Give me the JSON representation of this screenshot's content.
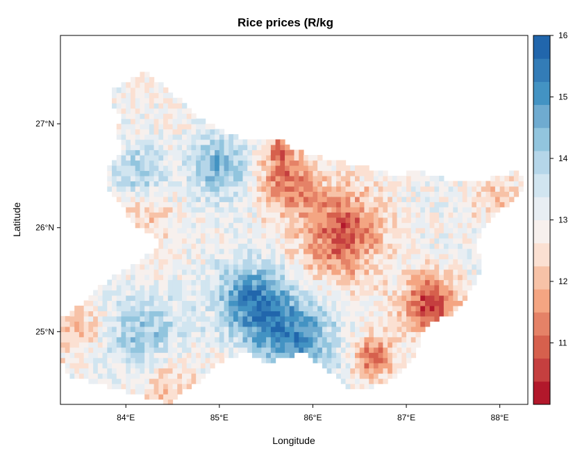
{
  "chart_data": {
    "type": "heatmap",
    "title": "Rice prices (R/kg",
    "xlabel": "Longitude",
    "ylabel": "Latitude",
    "xlim": [
      83.3,
      88.3
    ],
    "ylim": [
      24.3,
      27.85
    ],
    "x_ticks": [
      84,
      85,
      86,
      87,
      88
    ],
    "x_tick_labels": [
      "84°E",
      "85°E",
      "86°E",
      "87°E",
      "88°E"
    ],
    "y_ticks": [
      25,
      26,
      27
    ],
    "y_tick_labels": [
      "25°N",
      "26°N",
      "27°N"
    ],
    "colorbar": {
      "min": 10,
      "max": 16,
      "ticks": [
        11,
        12,
        13,
        14,
        15,
        16
      ],
      "tick_labels": [
        "11",
        "12",
        "13",
        "14",
        "15",
        "16"
      ],
      "colors": [
        "#b2182b",
        "#c53f3f",
        "#d6604d",
        "#e58267",
        "#f4a582",
        "#f7c2a7",
        "#fbe0d2",
        "#f7f0ed",
        "#e8eef3",
        "#d1e5f0",
        "#b5d6e9",
        "#92c5de",
        "#6fabd0",
        "#4393c3",
        "#337cb7",
        "#2166ac"
      ]
    },
    "region": {
      "boundary": [
        [
          83.32,
          25.13
        ],
        [
          83.45,
          25.22
        ],
        [
          83.6,
          25.32
        ],
        [
          83.75,
          25.45
        ],
        [
          83.9,
          25.55
        ],
        [
          84.05,
          25.62
        ],
        [
          84.2,
          25.72
        ],
        [
          84.35,
          25.82
        ],
        [
          84.3,
          25.95
        ],
        [
          84.15,
          26.0
        ],
        [
          84.0,
          26.1
        ],
        [
          83.95,
          26.25
        ],
        [
          83.8,
          26.35
        ],
        [
          83.8,
          26.55
        ],
        [
          83.95,
          26.75
        ],
        [
          83.9,
          26.95
        ],
        [
          83.95,
          27.1
        ],
        [
          83.85,
          27.2
        ],
        [
          83.85,
          27.35
        ],
        [
          84.0,
          27.4
        ],
        [
          84.2,
          27.5
        ],
        [
          84.35,
          27.4
        ],
        [
          84.55,
          27.25
        ],
        [
          84.7,
          27.1
        ],
        [
          84.9,
          27.0
        ],
        [
          85.1,
          26.9
        ],
        [
          85.3,
          26.85
        ],
        [
          85.5,
          26.85
        ],
        [
          85.65,
          26.85
        ],
        [
          85.8,
          26.75
        ],
        [
          86.0,
          26.7
        ],
        [
          86.2,
          26.65
        ],
        [
          86.45,
          26.6
        ],
        [
          86.7,
          26.55
        ],
        [
          86.9,
          26.5
        ],
        [
          87.1,
          26.55
        ],
        [
          87.25,
          26.5
        ],
        [
          87.5,
          26.45
        ],
        [
          87.8,
          26.45
        ],
        [
          88.0,
          26.5
        ],
        [
          88.15,
          26.55
        ],
        [
          88.28,
          26.45
        ],
        [
          88.2,
          26.3
        ],
        [
          88.05,
          26.2
        ],
        [
          87.85,
          26.05
        ],
        [
          87.75,
          25.85
        ],
        [
          87.8,
          25.65
        ],
        [
          87.75,
          25.5
        ],
        [
          87.65,
          25.35
        ],
        [
          87.55,
          25.25
        ],
        [
          87.45,
          25.15
        ],
        [
          87.25,
          25.1
        ],
        [
          87.15,
          24.95
        ],
        [
          87.1,
          24.8
        ],
        [
          87.0,
          24.65
        ],
        [
          86.85,
          24.55
        ],
        [
          86.7,
          24.5
        ],
        [
          86.55,
          24.45
        ],
        [
          86.35,
          24.45
        ],
        [
          86.2,
          24.6
        ],
        [
          86.05,
          24.7
        ],
        [
          85.9,
          24.8
        ],
        [
          85.7,
          24.75
        ],
        [
          85.5,
          24.7
        ],
        [
          85.3,
          24.8
        ],
        [
          85.1,
          24.75
        ],
        [
          84.9,
          24.65
        ],
        [
          84.75,
          24.5
        ],
        [
          84.55,
          24.4
        ],
        [
          84.45,
          24.3
        ],
        [
          84.3,
          24.35
        ],
        [
          84.1,
          24.4
        ],
        [
          83.9,
          24.45
        ],
        [
          83.7,
          24.5
        ],
        [
          83.5,
          24.55
        ],
        [
          83.35,
          24.6
        ],
        [
          83.3,
          24.85
        ]
      ],
      "value_field": [
        {
          "lon": 86.3,
          "lat": 25.95,
          "value": 10.8,
          "spread": 0.45
        },
        {
          "lon": 85.7,
          "lat": 26.45,
          "value": 11.2,
          "spread": 0.3
        },
        {
          "lon": 85.65,
          "lat": 26.75,
          "value": 11.3,
          "spread": 0.12
        },
        {
          "lon": 87.25,
          "lat": 25.25,
          "value": 10.6,
          "spread": 0.3
        },
        {
          "lon": 86.65,
          "lat": 24.75,
          "value": 11.0,
          "spread": 0.2
        },
        {
          "lon": 85.35,
          "lat": 25.3,
          "value": 15.3,
          "spread": 0.35
        },
        {
          "lon": 85.8,
          "lat": 24.95,
          "value": 15.2,
          "spread": 0.4
        },
        {
          "lon": 85.0,
          "lat": 26.6,
          "value": 14.6,
          "spread": 0.3
        },
        {
          "lon": 84.2,
          "lat": 24.95,
          "value": 14.3,
          "spread": 0.4
        },
        {
          "lon": 84.15,
          "lat": 26.55,
          "value": 14.1,
          "spread": 0.25
        },
        {
          "lon": 83.45,
          "lat": 25.05,
          "value": 12.0,
          "spread": 0.3
        },
        {
          "lon": 84.4,
          "lat": 24.5,
          "value": 12.0,
          "spread": 0.35
        },
        {
          "lon": 84.2,
          "lat": 26.05,
          "value": 12.2,
          "spread": 0.3
        },
        {
          "lon": 88.0,
          "lat": 26.3,
          "value": 12.2,
          "spread": 0.3
        },
        {
          "lon": 84.3,
          "lat": 27.35,
          "value": 12.8,
          "spread": 0.4
        }
      ],
      "background_value": 13.0
    }
  }
}
